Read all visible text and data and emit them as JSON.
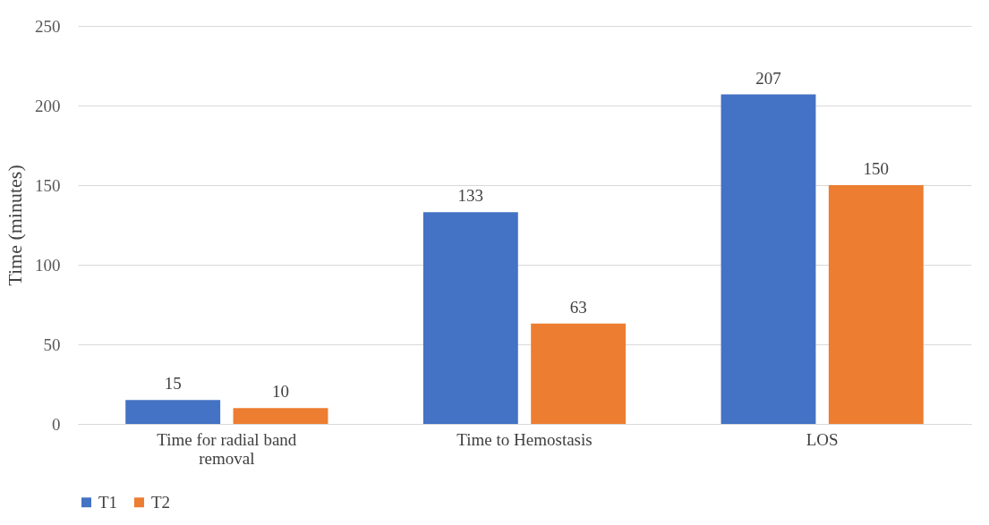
{
  "chart_data": {
    "type": "bar",
    "ylabel": "Time (minutes)",
    "categories": [
      "Time for radial band removal",
      "Time to Hemostasis",
      "LOS"
    ],
    "series": [
      {
        "name": "T1",
        "color": "#4472c4",
        "values": [
          15,
          133,
          207
        ]
      },
      {
        "name": "T2",
        "color": "#ed7d31",
        "values": [
          10,
          63,
          150
        ]
      }
    ],
    "ylim": [
      0,
      250
    ],
    "yticks": [
      0,
      50,
      100,
      150,
      200,
      250
    ],
    "grid": "y",
    "legend": "bottom",
    "data_labels": true
  }
}
